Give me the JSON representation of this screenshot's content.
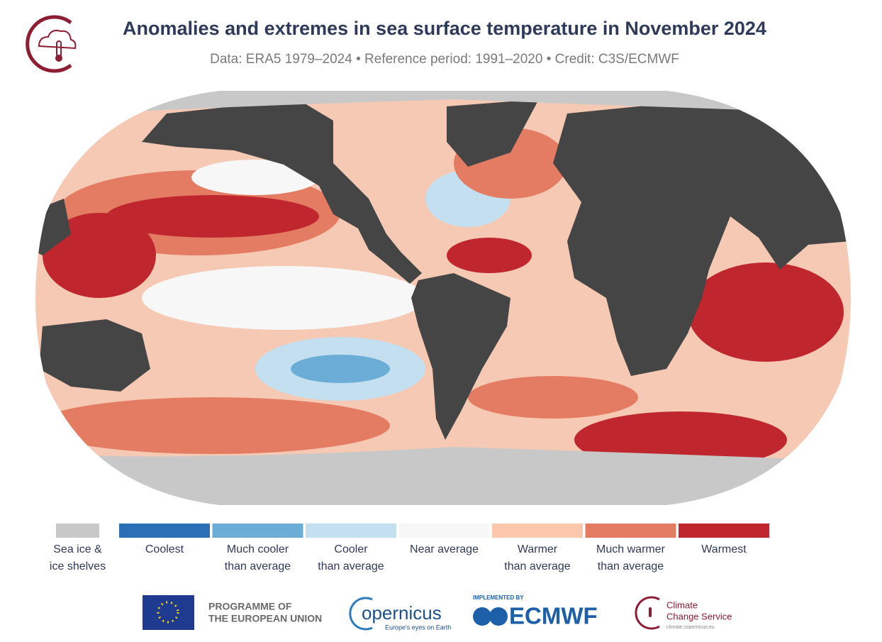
{
  "header": {
    "title": "Anomalies and extremes in sea surface temperature in November 2024",
    "subtitle": "Data: ERA5 1979–2024 • Reference period: 1991–2020 • Credit: C3S/ECMWF"
  },
  "legend": {
    "items": [
      {
        "lines": [
          "Sea ice &",
          "ice shelves"
        ],
        "color": "#c8c8c8"
      },
      {
        "lines": [
          "Coolest"
        ],
        "color": "#2c6fb4"
      },
      {
        "lines": [
          "Much cooler",
          "than average"
        ],
        "color": "#6badd6"
      },
      {
        "lines": [
          "Cooler",
          "than average"
        ],
        "color": "#c4dfef"
      },
      {
        "lines": [
          "Near average"
        ],
        "color": "#f7f7f7"
      },
      {
        "lines": [
          "Warmer",
          "than average"
        ],
        "color": "#fbc8ae"
      },
      {
        "lines": [
          "Much warmer",
          "than average"
        ],
        "color": "#e37c63"
      },
      {
        "lines": [
          "Warmest"
        ],
        "color": "#c0262e"
      }
    ]
  },
  "footer": {
    "eu": [
      "PROGRAMME OF",
      "THE EUROPEAN UNION"
    ],
    "copernicus": {
      "name": "opernicus",
      "tagline": "Europe's eyes on Earth"
    },
    "ecmwf": {
      "caption": "IMPLEMENTED BY",
      "name": "ECMWF"
    },
    "c3s": {
      "lines": [
        "Climate",
        "Change Service"
      ],
      "url": "climate.copernicus.eu"
    }
  }
}
